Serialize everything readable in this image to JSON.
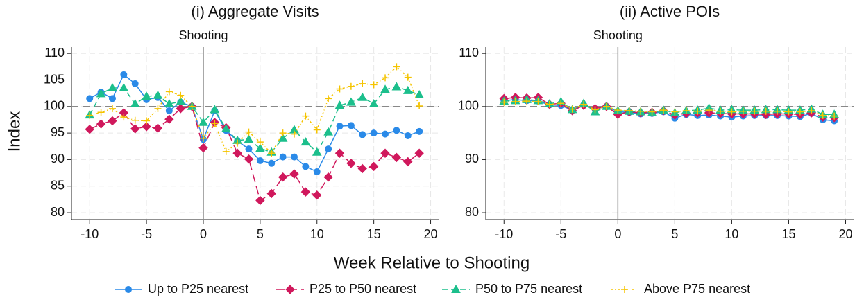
{
  "chart_data": [
    {
      "type": "line",
      "title": "(i) Aggregate Visits",
      "annotation": "Shooting",
      "x_label": "Week Relative to Shooting",
      "y_label": "Index",
      "x": [
        -10,
        -9,
        -8,
        -7,
        -6,
        -5,
        -4,
        -3,
        -2,
        -1,
        0,
        1,
        2,
        3,
        4,
        5,
        6,
        7,
        8,
        9,
        10,
        11,
        12,
        13,
        14,
        15,
        16,
        17,
        18,
        19
      ],
      "xlim": [
        -11.6,
        20.7
      ],
      "ylim": [
        78.7,
        111.2
      ],
      "xticks": [
        -10,
        -5,
        0,
        5,
        10,
        15,
        20
      ],
      "yticks": [
        80,
        85,
        90,
        95,
        100,
        105,
        110
      ],
      "grid": true,
      "hline": 100,
      "vline": 0,
      "legend": "bottom",
      "series": [
        {
          "name": "Up to P25 nearest",
          "color": "#2a8ae8",
          "marker": "circle",
          "dash": "solid",
          "values": [
            101.5,
            102.7,
            101.5,
            106,
            104.3,
            101.3,
            101.7,
            99.2,
            100.8,
            100,
            93.8,
            99.2,
            95.5,
            93.5,
            92,
            89.8,
            89.3,
            90.5,
            90.5,
            88.7,
            87.7,
            92,
            96.3,
            96.4,
            94.7,
            95,
            94.8,
            95.5,
            94.5,
            95.3
          ]
        },
        {
          "name": "P25 to P50 nearest",
          "color": "#d0185c",
          "marker": "diamond",
          "dash": "long",
          "values": [
            95.7,
            96.7,
            97.3,
            98.8,
            95.8,
            96.2,
            95.9,
            97.6,
            99.6,
            100,
            92.2,
            97,
            96,
            91.2,
            90.1,
            82.3,
            83.6,
            86.7,
            87.3,
            83.9,
            83.3,
            86.7,
            91.2,
            89.3,
            88.3,
            88.7,
            91.2,
            90.4,
            89.6,
            91.2
          ]
        },
        {
          "name": "P50 to P75 nearest",
          "color": "#1cbf8c",
          "marker": "triangle",
          "dash": "medium",
          "values": [
            98.4,
            102.4,
            103.5,
            103.5,
            100.5,
            101.9,
            102.1,
            100.5,
            100.9,
            100,
            97,
            99.4,
            95.8,
            93.6,
            93.8,
            92.1,
            91.4,
            94,
            95.6,
            93.3,
            91.4,
            95.2,
            100.2,
            100.8,
            101.7,
            100.5,
            103.2,
            103.7,
            103,
            102.2
          ]
        },
        {
          "name": "Above P75 nearest",
          "color": "#f5c400",
          "marker": "plus",
          "dash": "dotdash",
          "values": [
            98.3,
            98.9,
            99.6,
            98,
            97.4,
            97.3,
            99.6,
            102.8,
            102.1,
            100,
            94,
            96.8,
            91.5,
            93.1,
            95.2,
            93.3,
            91.2,
            95,
            94.8,
            98.2,
            95.6,
            101.5,
            103.3,
            103.8,
            104.3,
            104.1,
            105.4,
            107.5,
            105.5,
            100.1
          ]
        }
      ]
    },
    {
      "type": "line",
      "title": "(ii) Active POIs",
      "annotation": "Shooting",
      "x": [
        -10,
        -9,
        -8,
        -7,
        -6,
        -5,
        -4,
        -3,
        -2,
        -1,
        0,
        1,
        2,
        3,
        4,
        5,
        6,
        7,
        8,
        9,
        10,
        11,
        12,
        13,
        14,
        15,
        16,
        17,
        18,
        19
      ],
      "xlim": [
        -11.6,
        20.7
      ],
      "ylim": [
        78.7,
        111.2
      ],
      "xticks": [
        -10,
        -5,
        0,
        5,
        10,
        15,
        20
      ],
      "yticks": [
        80,
        90,
        100,
        110
      ],
      "grid": true,
      "hline": 100,
      "vline": 0,
      "series": [
        {
          "color": "#2a8ae8",
          "marker": "circle",
          "dash": "solid",
          "values": [
            101.1,
            101.3,
            101.1,
            101,
            100.3,
            100.2,
            99.3,
            100.3,
            99.5,
            100,
            99,
            98.9,
            98.6,
            98.7,
            99,
            97.8,
            98.5,
            98.3,
            98.4,
            98.2,
            98,
            98.2,
            98.3,
            98.3,
            98.3,
            98.2,
            98.1,
            98.7,
            97.5,
            97.3
          ]
        },
        {
          "color": "#d0185c",
          "marker": "diamond",
          "dash": "long",
          "values": [
            101.5,
            101.7,
            101.6,
            101.7,
            100.4,
            100.6,
            99.2,
            100.2,
            99.6,
            100,
            98.5,
            99,
            98.8,
            98.9,
            99.2,
            98.4,
            98.7,
            98.8,
            98.8,
            98.7,
            98.6,
            98.6,
            98.6,
            98.5,
            98.6,
            98.6,
            98.5,
            98.8,
            98,
            97.9
          ]
        },
        {
          "color": "#1cbf8c",
          "marker": "triangle",
          "dash": "medium",
          "values": [
            101,
            101.1,
            101.3,
            101.1,
            100.5,
            100.9,
            99.4,
            100.6,
            99,
            100,
            99.2,
            99.1,
            99,
            98.8,
            99.3,
            98.8,
            99.2,
            99.3,
            99.7,
            99.3,
            99.4,
            99.3,
            99.3,
            99.4,
            99.4,
            99.3,
            99.3,
            99.5,
            98.5,
            98.5
          ]
        },
        {
          "color": "#f5c400",
          "marker": "plus",
          "dash": "dotdash",
          "values": [
            100.8,
            100.9,
            101,
            100.9,
            100.4,
            100.6,
            99.5,
            100.4,
            99.4,
            100,
            99.3,
            99.2,
            99.1,
            99,
            99.3,
            99,
            99.2,
            99.1,
            99.3,
            99.1,
            99,
            99.1,
            99.1,
            99.1,
            99.1,
            99,
            99,
            99.2,
            98.3,
            98.2
          ]
        }
      ]
    }
  ]
}
